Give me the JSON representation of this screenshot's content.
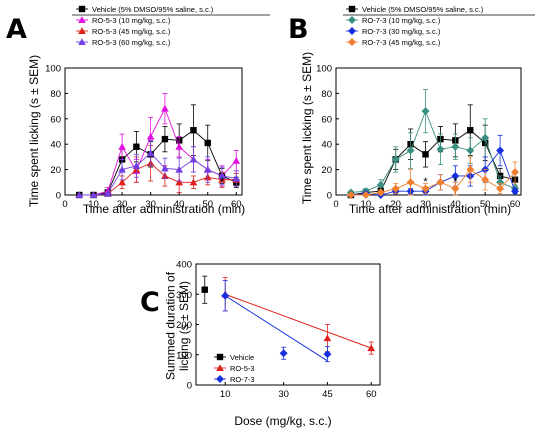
{
  "panels": [
    {
      "letter": "A",
      "ylabel": "Time spent licking (s ± SEM)",
      "xlabel": "Time after administration (min)",
      "legend": [
        "Vehicle (5% DMSO/95% saline, s.c.)",
        "RO-5-3 (10 mg/kg, s.c.)",
        "RO-5-3 (45 mg/kg, s.c.)",
        "RO-5-3 (60 mg/kg, s.c.)"
      ]
    },
    {
      "letter": "B",
      "ylabel": "Time spent licking (s ± SEM)",
      "xlabel": "Time after administration (min)",
      "legend": [
        "Vehicle (5% DMSO/95% saline, s.c.)",
        "RO-7-3 (10 mg/kg, s.c.)",
        "RO-7-3 (30 mg/kg, s.c.)",
        "RO-7-3 (45 mg/kg, s.c.)"
      ]
    },
    {
      "letter": "C",
      "ylabel": "Summed duration of licking (s ± SEM)",
      "xlabel": "Dose (mg/kg, s.c.)",
      "legend": [
        "Vehicle",
        "RO-5-3",
        "RO-7-3"
      ]
    }
  ],
  "chart_data": [
    {
      "type": "line",
      "panel": "A",
      "xlabel": "Time after administration (min)",
      "ylabel": "Time spent licking (s ± SEM)",
      "xlim": [
        0,
        62
      ],
      "ylim": [
        0,
        100
      ],
      "xticks": [
        0,
        10,
        20,
        30,
        40,
        50,
        60
      ],
      "yticks": [
        0,
        20,
        40,
        60,
        80,
        100
      ],
      "x": [
        5,
        10,
        15,
        20,
        25,
        30,
        35,
        40,
        45,
        50,
        55,
        60
      ],
      "series": [
        {
          "name": "Vehicle (5% DMSO/95% saline, s.c.)",
          "color": "#000000",
          "marker": "square",
          "values": [
            0,
            0,
            2,
            28,
            38,
            32,
            44,
            43,
            51,
            41,
            15,
            10
          ],
          "errors": [
            0,
            0,
            2,
            8,
            12,
            10,
            10,
            13,
            20,
            14,
            6,
            4
          ]
        },
        {
          "name": "RO-5-3 (10 mg/kg, s.c.)",
          "color": "#e010e0",
          "marker": "triangle-up",
          "values": [
            0,
            0,
            3,
            38,
            19,
            46,
            68,
            38,
            28,
            20,
            15,
            27
          ],
          "errors": [
            0,
            0,
            3,
            10,
            9,
            15,
            12,
            8,
            10,
            8,
            8,
            8
          ]
        },
        {
          "name": "RO-5-3 (45 mg/kg, s.c.)",
          "color": "#e0201a",
          "marker": "triangle-up",
          "values": [
            0,
            0,
            1,
            10,
            20,
            25,
            15,
            10,
            10,
            14,
            12,
            12
          ],
          "errors": [
            0,
            0,
            1,
            5,
            10,
            14,
            8,
            8,
            5,
            6,
            6,
            5
          ]
        },
        {
          "name": "RO-5-3 (60 mg/kg, s.c.)",
          "color": "#7040e0",
          "marker": "triangle-up",
          "values": [
            0,
            0,
            1,
            20,
            23,
            33,
            21,
            20,
            28,
            20,
            15,
            13
          ],
          "errors": [
            0,
            0,
            1,
            8,
            9,
            10,
            8,
            9,
            10,
            10,
            7,
            6
          ]
        }
      ],
      "annotations": [
        {
          "text": "*",
          "x": 55,
          "y": 8
        }
      ]
    },
    {
      "type": "line",
      "panel": "B",
      "xlabel": "Time after administration (min)",
      "ylabel": "Time spent licking (s ± SEM)",
      "xlim": [
        0,
        62
      ],
      "ylim": [
        0,
        100
      ],
      "xticks": [
        0,
        10,
        20,
        30,
        40,
        50,
        60
      ],
      "yticks": [
        0,
        20,
        40,
        60,
        80,
        100
      ],
      "x": [
        5,
        10,
        15,
        20,
        25,
        30,
        35,
        40,
        45,
        50,
        55,
        60
      ],
      "series": [
        {
          "name": "Vehicle (5% DMSO/95% saline, s.c.)",
          "color": "#000000",
          "marker": "square",
          "values": [
            0,
            2,
            3,
            28,
            40,
            32,
            44,
            43,
            51,
            41,
            15,
            12
          ],
          "errors": [
            0,
            2,
            3,
            8,
            12,
            10,
            10,
            13,
            20,
            14,
            6,
            5
          ]
        },
        {
          "name": "RO-7-3 (10 mg/kg, s.c.)",
          "color": "#3a9080",
          "marker": "diamond",
          "values": [
            2,
            3,
            8,
            28,
            35,
            66,
            36,
            38,
            35,
            45,
            10,
            5
          ],
          "errors": [
            1,
            2,
            4,
            10,
            14,
            17,
            12,
            10,
            10,
            15,
            5,
            3
          ]
        },
        {
          "name": "RO-7-3 (30 mg/kg, s.c.)",
          "color": "#1530e0",
          "marker": "diamond",
          "values": [
            0,
            1,
            0,
            3,
            3,
            3,
            10,
            15,
            15,
            20,
            35,
            3
          ],
          "errors": [
            0,
            1,
            0,
            2,
            2,
            3,
            6,
            8,
            8,
            10,
            12,
            2
          ]
        },
        {
          "name": "RO-7-3 (45 mg/kg, s.c.)",
          "color": "#f08030",
          "marker": "diamond",
          "values": [
            0,
            0,
            2,
            5,
            10,
            5,
            10,
            5,
            20,
            12,
            5,
            18
          ],
          "errors": [
            0,
            0,
            2,
            4,
            10,
            4,
            6,
            5,
            10,
            8,
            4,
            8
          ]
        }
      ],
      "annotations": [
        {
          "text": "*",
          "x": 30,
          "y": 8
        },
        {
          "text": "*",
          "x": 40,
          "y": 8
        }
      ]
    },
    {
      "type": "scatter",
      "panel": "C",
      "xlabel": "Dose (mg/kg, s.c.)",
      "ylabel": "Summed duration of licking (s ± SEM)",
      "xlim": [
        0,
        63
      ],
      "ylim": [
        0,
        400
      ],
      "xticks": [
        10,
        30,
        45,
        60
      ],
      "yticks": [
        0,
        100,
        200,
        300,
        400
      ],
      "series": [
        {
          "name": "Vehicle",
          "color": "#000000",
          "marker": "square",
          "x": [
            3
          ],
          "values": [
            315
          ],
          "errors": [
            45
          ]
        },
        {
          "name": "RO-5-3",
          "color": "#e0201a",
          "marker": "triangle-up",
          "x": [
            10,
            45,
            60
          ],
          "values": [
            300,
            155,
            122
          ],
          "errors": [
            55,
            45,
            20
          ]
        },
        {
          "name": "RO-7-3",
          "color": "#1530e0",
          "marker": "diamond",
          "x": [
            10,
            30,
            45
          ],
          "values": [
            295,
            105,
            102
          ],
          "errors": [
            50,
            20,
            25
          ]
        }
      ],
      "trendlines": [
        {
          "series": "RO-5-3",
          "color": "#e0201a",
          "from": [
            10,
            300
          ],
          "to": [
            60,
            122
          ]
        },
        {
          "series": "RO-7-3",
          "color": "#1530e0",
          "from": [
            10,
            295
          ],
          "to": [
            45,
            80
          ]
        }
      ]
    }
  ]
}
